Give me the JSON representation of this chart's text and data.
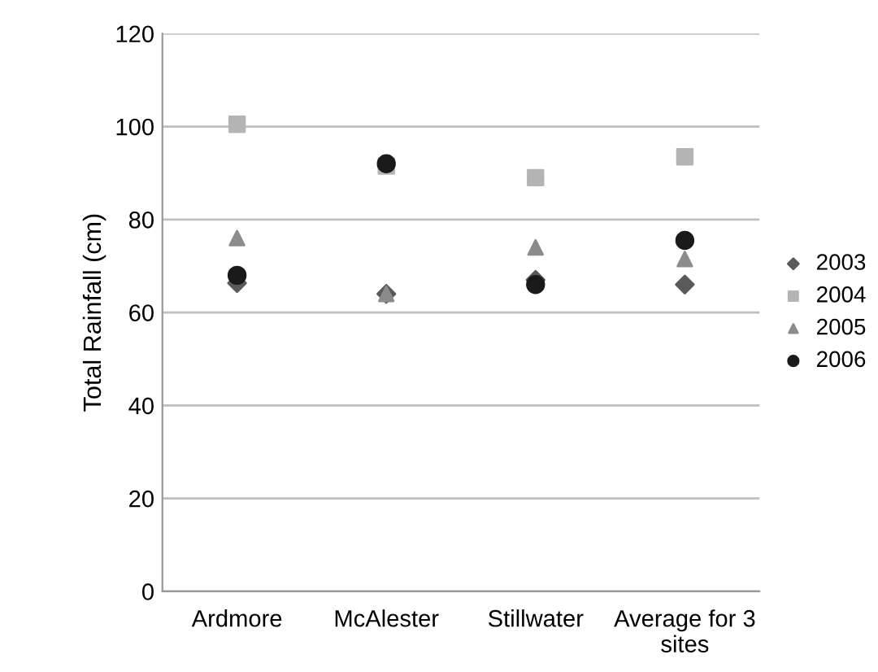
{
  "chart_data": {
    "type": "scatter",
    "ylabel": "Total Rainfall (cm)",
    "categories": [
      "Ardmore",
      "McAlester",
      "Stillwater",
      "Average for 3\nsites"
    ],
    "series": [
      {
        "name": "2003",
        "color": "#5a5a5a",
        "marker": "diamond",
        "values": [
          66.3,
          64,
          67,
          66
        ]
      },
      {
        "name": "2004",
        "color": "#b4b4b4",
        "marker": "square",
        "values": [
          100.5,
          91.5,
          89,
          93.5
        ]
      },
      {
        "name": "2005",
        "color": "#8c8c8c",
        "marker": "triangle",
        "values": [
          76,
          64,
          74,
          71.5
        ]
      },
      {
        "name": "2006",
        "color": "#1a1a1a",
        "marker": "circle",
        "values": [
          68,
          92,
          66,
          75.5
        ]
      }
    ],
    "ylim": [
      0,
      120
    ],
    "yticks": [
      0,
      20,
      40,
      60,
      80,
      100,
      120
    ],
    "grid": "y",
    "legend": "right"
  }
}
